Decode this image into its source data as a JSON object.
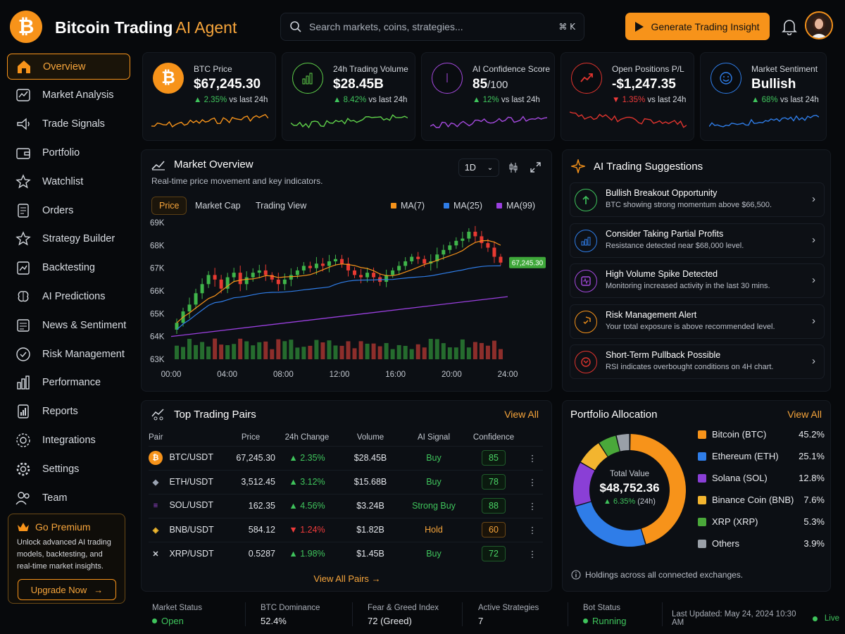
{
  "app": {
    "title": "Bitcoin Trading",
    "title_accent": "AI Agent",
    "logo_glyph": "₿"
  },
  "search": {
    "placeholder": "Search markets, coins, strategies...",
    "shortcut": "⌘ K"
  },
  "header": {
    "cta_label": "Generate Trading Insight"
  },
  "sidebar": {
    "items": [
      {
        "label": "Overview",
        "icon": "home-icon",
        "active": true
      },
      {
        "label": "Market Analysis",
        "icon": "chart-icon"
      },
      {
        "label": "Trade Signals",
        "icon": "signal-icon"
      },
      {
        "label": "Portfolio",
        "icon": "wallet-icon"
      },
      {
        "label": "Watchlist",
        "icon": "star-icon"
      },
      {
        "label": "Orders",
        "icon": "orders-icon"
      },
      {
        "label": "Strategy Builder",
        "icon": "strategy-icon"
      },
      {
        "label": "Backtesting",
        "icon": "backtest-icon"
      },
      {
        "label": "AI Predictions",
        "icon": "brain-icon"
      },
      {
        "label": "News & Sentiment",
        "icon": "news-icon"
      },
      {
        "label": "Risk Management",
        "icon": "shield-icon"
      },
      {
        "label": "Performance",
        "icon": "bars-icon"
      },
      {
        "label": "Reports",
        "icon": "report-icon"
      },
      {
        "label": "Integrations",
        "icon": "plug-icon"
      },
      {
        "label": "Settings",
        "icon": "gear-icon"
      },
      {
        "label": "Team",
        "icon": "team-icon"
      }
    ],
    "premium": {
      "title": "Go Premium",
      "text": "Unlock advanced AI trading models, backtesting, and real-time market insights.",
      "button": "Upgrade Now"
    }
  },
  "stats": [
    {
      "label": "BTC Price",
      "value": "$67,245.30",
      "unit": "",
      "change": "2.35%",
      "dir": "up",
      "suffix": "vs last 24h",
      "color": "#f7931a"
    },
    {
      "label": "24h Trading Volume",
      "value": "$28.45B",
      "unit": "",
      "change": "8.42%",
      "dir": "up",
      "suffix": "vs last 24h",
      "color": "#5fd14a"
    },
    {
      "label": "AI Confidence Score",
      "value": "85",
      "unit": "/100",
      "change": "12%",
      "dir": "up",
      "suffix": "vs last 24h",
      "color": "#a64ae0"
    },
    {
      "label": "Open Positions P/L",
      "value": "-$1,247.35",
      "unit": "",
      "change": "1.35%",
      "dir": "down",
      "suffix": "vs last 24h",
      "color": "#e0342e"
    },
    {
      "label": "Market Sentiment",
      "value": "Bullish",
      "unit": "",
      "change": "68%",
      "dir": "up",
      "suffix": "vs last 24h",
      "color": "#2f7de8"
    }
  ],
  "market": {
    "title": "Market Overview",
    "subtitle": "Real-time price movement and key indicators.",
    "timeframe": "1D",
    "tabs": [
      "Price",
      "Market Cap",
      "Trading View"
    ],
    "legend": [
      {
        "name": "MA(7)",
        "color": "#f7931a"
      },
      {
        "name": "MA(25)",
        "color": "#2f7de8"
      },
      {
        "name": "MA(99)",
        "color": "#9b40e0"
      }
    ],
    "y_ticks": [
      "69K",
      "68K",
      "67K",
      "66K",
      "65K",
      "64K",
      "63K"
    ],
    "x_ticks": [
      "00:00",
      "04:00",
      "08:00",
      "12:00",
      "16:00",
      "20:00",
      "24:00"
    ],
    "price_tag": "67,245.30"
  },
  "chart_data": {
    "type": "candlestick",
    "title": "Market Overview",
    "x_range": [
      "00:00",
      "24:00"
    ],
    "ylim": [
      63000,
      69000
    ],
    "close_approx": [
      64600,
      65100,
      65400,
      65900,
      66300,
      66700,
      66500,
      66100,
      66600,
      66800,
      66300,
      66600,
      66800,
      66900,
      66700,
      66500,
      66300,
      66500,
      66700,
      66900,
      67100,
      67000,
      67200,
      67100,
      67300,
      67400,
      67200,
      66900,
      66700,
      66600,
      66800,
      66600,
      66400,
      66700,
      66900,
      67100,
      67300,
      67500,
      67400,
      67200,
      67300,
      67600,
      67800,
      68000,
      68200,
      68300,
      68600,
      68400,
      68100,
      67900,
      67500,
      67245
    ],
    "last_price": 67245.3
  },
  "suggestions": {
    "title": "AI Trading Suggestions",
    "items": [
      {
        "title": "Bullish Breakout Opportunity",
        "desc": "BTC showing strong momentum above $66,500.",
        "color": "#3fc45c",
        "icon": "arrow-up-icon"
      },
      {
        "title": "Consider Taking Partial Profits",
        "desc": "Resistance detected near $68,000 level.",
        "color": "#2f7de8",
        "icon": "bars-icon"
      },
      {
        "title": "High Volume Spike Detected",
        "desc": "Monitoring increased activity in the last 30 mins.",
        "color": "#a64ae0",
        "icon": "spike-icon"
      },
      {
        "title": "Risk Management Alert",
        "desc": "Your total exposure is above recommended level.",
        "color": "#f7931a",
        "icon": "shield-icon"
      },
      {
        "title": "Short-Term Pullback Possible",
        "desc": "RSI indicates overbought conditions on 4H chart.",
        "color": "#e0342e",
        "icon": "pullback-icon"
      }
    ]
  },
  "pairs": {
    "title": "Top Trading Pairs",
    "view_all": "View All",
    "view_all_pairs": "View All Pairs",
    "columns": [
      "Pair",
      "Price",
      "24h Change",
      "Volume",
      "AI Signal",
      "Confidence"
    ],
    "rows": [
      {
        "pair": "BTC/USDT",
        "price": "67,245.30",
        "change": "2.35%",
        "dir": "up",
        "volume": "$28.45B",
        "signal": "Buy",
        "confidence": "85",
        "coin": "₿",
        "color": "#f7931a"
      },
      {
        "pair": "ETH/USDT",
        "price": "3,512.45",
        "change": "3.12%",
        "dir": "up",
        "volume": "$15.68B",
        "signal": "Buy",
        "confidence": "78",
        "coin": "◆",
        "color": "#9aa3b2"
      },
      {
        "pair": "SOL/USDT",
        "price": "162.35",
        "change": "4.56%",
        "dir": "up",
        "volume": "$3.24B",
        "signal": "Strong Buy",
        "confidence": "88",
        "coin": "≡",
        "color": "#a64ae0"
      },
      {
        "pair": "BNB/USDT",
        "price": "584.12",
        "change": "1.24%",
        "dir": "down",
        "volume": "$1.82B",
        "signal": "Hold",
        "confidence": "60",
        "coin": "◈",
        "color": "#f3ba2f"
      },
      {
        "pair": "XRP/USDT",
        "price": "0.5287",
        "change": "1.98%",
        "dir": "up",
        "volume": "$1.45B",
        "signal": "Buy",
        "confidence": "72",
        "coin": "✕",
        "color": "#cfd3da"
      }
    ]
  },
  "portfolio": {
    "title": "Portfolio Allocation",
    "view_all": "View All",
    "total_label": "Total Value",
    "total_value": "$48,752.36",
    "total_change": "6.35%",
    "total_period": "(24h)",
    "note": "Holdings across all connected exchanges.",
    "items": [
      {
        "name": "Bitcoin (BTC)",
        "pct": "45.2%",
        "value": 45.2,
        "color": "#f7931a"
      },
      {
        "name": "Ethereum (ETH)",
        "pct": "25.1%",
        "value": 25.1,
        "color": "#2f7de8"
      },
      {
        "name": "Solana (SOL)",
        "pct": "12.8%",
        "value": 12.8,
        "color": "#8a3fd6"
      },
      {
        "name": "Binance Coin (BNB)",
        "pct": "7.6%",
        "value": 7.6,
        "color": "#f3b52f"
      },
      {
        "name": "XRP (XRP)",
        "pct": "5.3%",
        "value": 5.3,
        "color": "#4aa83a"
      },
      {
        "name": "Others",
        "pct": "3.9%",
        "value": 3.9,
        "color": "#9aa0a8"
      }
    ]
  },
  "footer": {
    "market_status_label": "Market Status",
    "market_status": "Open",
    "dominance_label": "BTC Dominance",
    "dominance": "52.4%",
    "fear_label": "Fear & Greed Index",
    "fear": "72  (Greed)",
    "strategies_label": "Active Strategies",
    "strategies": "7",
    "bot_label": "Bot Status",
    "bot": "Running",
    "updated": "Last Updated: May 24, 2024 10:30 AM",
    "live": "Live"
  }
}
